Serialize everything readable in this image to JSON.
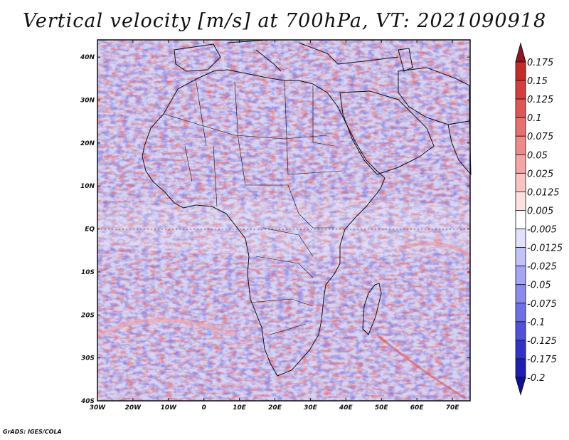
{
  "title": "Vertical velocity [m/s] at 700hPa, VT: 2021090918",
  "credit": "GrADS: IGES/COLA",
  "map": {
    "lat_labels": [
      "40N",
      "30N",
      "20N",
      "10N",
      "EQ",
      "10S",
      "20S",
      "30S",
      "40S"
    ],
    "lat_values": [
      40,
      30,
      20,
      10,
      0,
      -10,
      -20,
      -30,
      -40
    ],
    "lon_labels": [
      "30W",
      "20W",
      "10W",
      "0",
      "10E",
      "20E",
      "30E",
      "40E",
      "50E",
      "60E",
      "70E"
    ],
    "lon_values": [
      -30,
      -20,
      -10,
      0,
      10,
      20,
      30,
      40,
      50,
      60,
      70
    ],
    "lon_range": [
      -30,
      75
    ],
    "lat_range": [
      -40,
      44
    ]
  },
  "colorbar": {
    "labels": [
      "0.175",
      "0.15",
      "0.125",
      "0.1",
      "0.075",
      "0.05",
      "0.025",
      "0.0125",
      "0.005",
      "-0.005",
      "-0.0125",
      "-0.025",
      "-0.05",
      "-0.075",
      "-0.1",
      "-0.125",
      "-0.175",
      "-0.2"
    ],
    "colors": [
      "#b4141e",
      "#c82828",
      "#d73c3c",
      "#e15555",
      "#eb6e6e",
      "#f08a8a",
      "#f5a5a5",
      "#fac3c3",
      "#fde1e1",
      "#ffffff",
      "#e1e1fd",
      "#c3c3fa",
      "#a5a5f5",
      "#8a8af0",
      "#6e6eeb",
      "#5050dc",
      "#3232c8",
      "#1e1eb4",
      "#0f0f9b"
    ],
    "top_arrow_color": "#96141e",
    "bottom_arrow_color": "#0f0f9b"
  }
}
